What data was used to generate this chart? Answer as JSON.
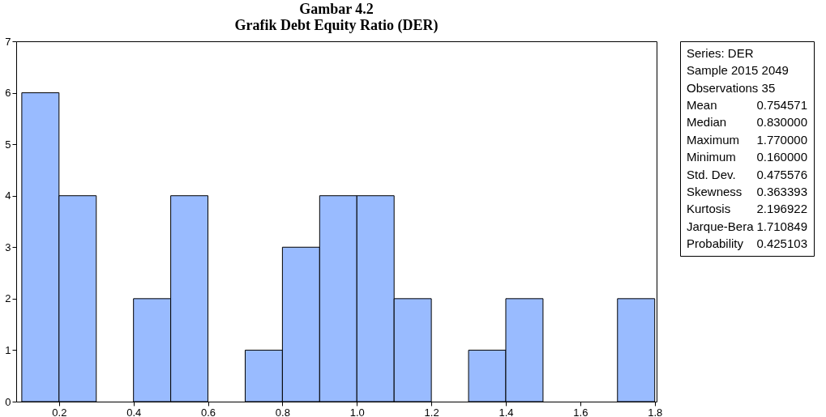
{
  "chart_data": {
    "type": "histogram",
    "title": "Gambar 4.2",
    "subtitle": "Grafik  Debt Equity Ratio (DER)",
    "bins": [
      0.1,
      0.2,
      0.3,
      0.4,
      0.5,
      0.6,
      0.7,
      0.8,
      0.9,
      1.0,
      1.1,
      1.2,
      1.3,
      1.4,
      1.5,
      1.6,
      1.7,
      1.8
    ],
    "values": [
      6,
      4,
      0,
      2,
      4,
      0,
      1,
      3,
      4,
      4,
      2,
      0,
      1,
      2,
      0,
      0,
      2
    ],
    "color": "#99bbff",
    "xlim": [
      0.085,
      1.805
    ],
    "xticks": [
      {
        "value": 0.2,
        "label": "0.2"
      },
      {
        "value": 0.4,
        "label": "0.4"
      },
      {
        "value": 0.6,
        "label": "0.6"
      },
      {
        "value": 0.8,
        "label": "0.8"
      },
      {
        "value": 1.0,
        "label": "1.0"
      },
      {
        "value": 1.2,
        "label": "1.2"
      },
      {
        "value": 1.4,
        "label": "1.4"
      },
      {
        "value": 1.6,
        "label": "1.6"
      },
      {
        "value": 1.8,
        "label": "1.8"
      }
    ],
    "ylim": [
      0,
      7
    ],
    "yticks": [
      0,
      1,
      2,
      3,
      4,
      5,
      6,
      7
    ],
    "grid": false,
    "annotations": [
      "Series: DER",
      "Sample 2015 2049",
      "Observations 35",
      "Mean\t0.754571",
      "Median\t0.830000",
      "Maximum\t1.770000",
      "Minimum\t0.160000",
      "Std. Dev.\t0.475576",
      "Skewness\t0.363393",
      "Kurtosis\t2.196922",
      "Jarque-Bera\t1.710849",
      "Probability\t0.425103"
    ]
  }
}
